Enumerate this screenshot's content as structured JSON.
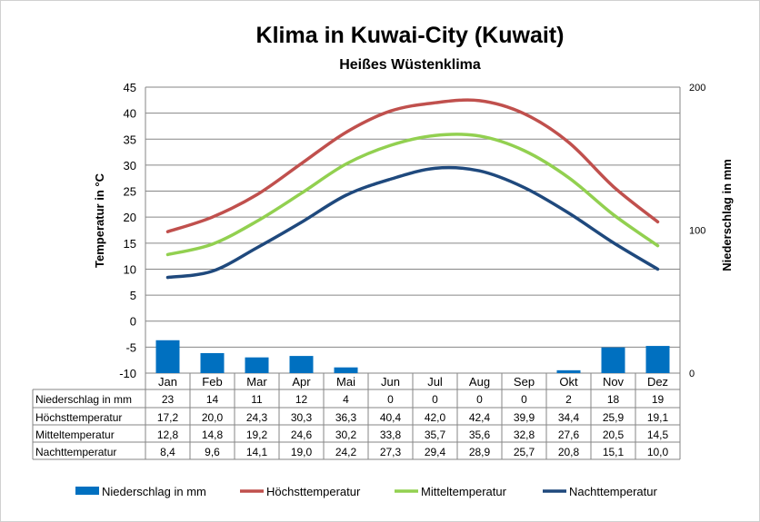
{
  "chart_data": {
    "type": "line",
    "title": "Klima in Kuwai-City (Kuwait)",
    "subtitle": "Heißes Wüstenklima",
    "ylabel": "Temperatur in °C",
    "y2label": "Niederschlag in mm",
    "ylim": [
      -10,
      45
    ],
    "y2lim": [
      0,
      200
    ],
    "yticks": [
      "45",
      "40",
      "35",
      "30",
      "25",
      "20",
      "15",
      "10",
      "5",
      "0",
      "-5",
      "-10"
    ],
    "y2ticks": [
      "200",
      "100",
      "0"
    ],
    "categories": [
      "Jan",
      "Feb",
      "Mar",
      "Apr",
      "Mai",
      "Jun",
      "Jul",
      "Aug",
      "Sep",
      "Okt",
      "Nov",
      "Dez"
    ],
    "grid": true,
    "legend_position": "bottom",
    "series": [
      {
        "name": "Niederschlag in mm",
        "type": "bar",
        "axis": "right",
        "color": "#0070C0",
        "values": [
          23,
          14,
          11,
          12,
          4,
          0,
          0,
          0,
          0,
          2,
          18,
          19
        ],
        "labels": [
          "23",
          "14",
          "11",
          "12",
          "4",
          "0",
          "0",
          "0",
          "0",
          "2",
          "18",
          "19"
        ]
      },
      {
        "name": "Höchsttemperatur",
        "type": "line",
        "color": "#C0504D",
        "values": [
          17.2,
          20.0,
          24.3,
          30.3,
          36.3,
          40.4,
          42.0,
          42.4,
          39.9,
          34.4,
          25.9,
          19.1
        ],
        "labels": [
          "17,2",
          "20,0",
          "24,3",
          "30,3",
          "36,3",
          "40,4",
          "42,0",
          "42,4",
          "39,9",
          "34,4",
          "25,9",
          "19,1"
        ]
      },
      {
        "name": "Mitteltemperatur",
        "type": "line",
        "color": "#92D050",
        "values": [
          12.8,
          14.8,
          19.2,
          24.6,
          30.2,
          33.8,
          35.7,
          35.6,
          32.8,
          27.6,
          20.5,
          14.5
        ],
        "labels": [
          "12,8",
          "14,8",
          "19,2",
          "24,6",
          "30,2",
          "33,8",
          "35,7",
          "35,6",
          "32,8",
          "27,6",
          "20,5",
          "14,5"
        ]
      },
      {
        "name": "Nachttemperatur",
        "type": "line",
        "color": "#1F497D",
        "values": [
          8.4,
          9.6,
          14.1,
          19.0,
          24.2,
          27.3,
          29.4,
          28.9,
          25.7,
          20.8,
          15.1,
          10.0
        ],
        "labels": [
          "8,4",
          "9,6",
          "14,1",
          "19,0",
          "24,2",
          "27,3",
          "29,4",
          "28,9",
          "25,7",
          "20,8",
          "15,1",
          "10,0"
        ]
      }
    ]
  }
}
